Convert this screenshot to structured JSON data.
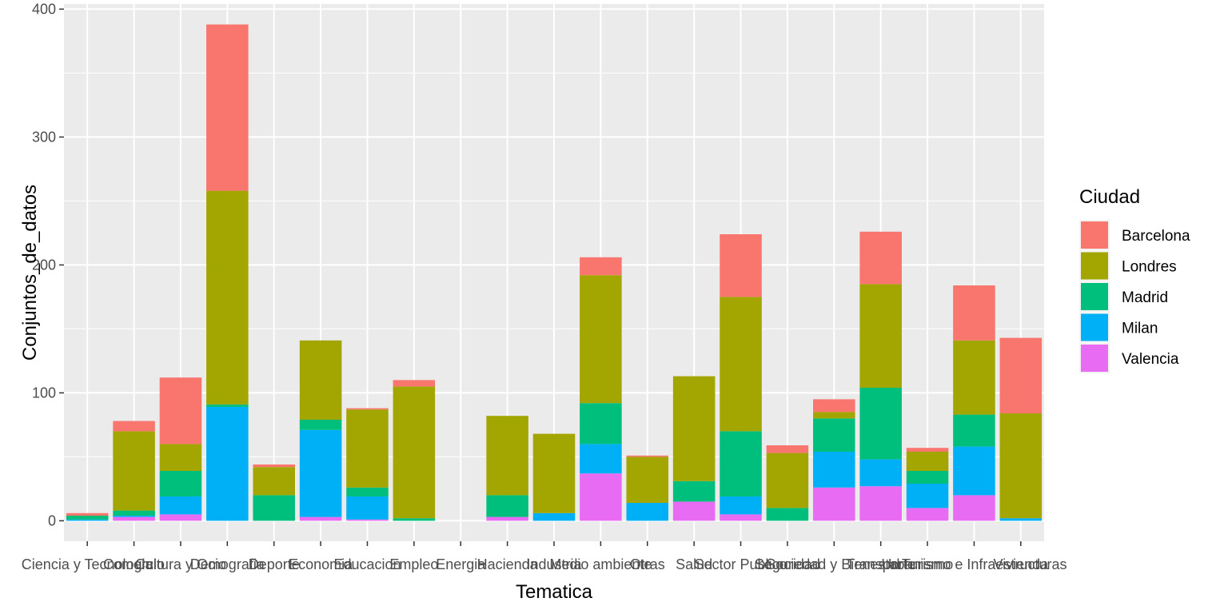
{
  "chart_data": {
    "type": "bar",
    "stacked": true,
    "xlabel": "Tematica",
    "ylabel": "Conjuntos_de_datos",
    "ylim": [
      -16,
      404
    ],
    "yticks": [
      0,
      100,
      200,
      300,
      400
    ],
    "ytick_labels": [
      "0",
      "100",
      "200",
      "300",
      "400"
    ],
    "grid": true,
    "legend_position": "right",
    "legend_title": "Ciudad",
    "categories": [
      "Ciencia y Tecnologia",
      "Comercio",
      "Cultura y Ocio",
      "Demografia",
      "Deporte",
      "Economia",
      "Educacion",
      "Empleo",
      "Energia",
      "Hacienda",
      "Industria",
      "Medio ambiente",
      "Otras",
      "Salud",
      "Sector Publico",
      "Seguridad",
      "Sociedad y Bienestar",
      "Transporte",
      "Turismo",
      "Urbanismo e Infraestructuras",
      "Vivienda"
    ],
    "series": [
      {
        "name": "Valencia",
        "color": "#E76BF3",
        "values": [
          0,
          3,
          5,
          0,
          0,
          3,
          1,
          0,
          0,
          3,
          0,
          37,
          0,
          15,
          5,
          0,
          26,
          27,
          10,
          20,
          0
        ]
      },
      {
        "name": "Milan",
        "color": "#00B0F6",
        "values": [
          1,
          1,
          14,
          89,
          0,
          68,
          18,
          0,
          0,
          0,
          6,
          23,
          14,
          0,
          14,
          0,
          28,
          21,
          19,
          38,
          2
        ]
      },
      {
        "name": "Madrid",
        "color": "#00BF7D",
        "values": [
          3,
          4,
          20,
          2,
          20,
          8,
          7,
          2,
          0,
          17,
          0,
          32,
          0,
          16,
          51,
          10,
          26,
          56,
          10,
          25,
          0
        ]
      },
      {
        "name": "Londres",
        "color": "#A3A500",
        "values": [
          0,
          62,
          21,
          167,
          22,
          62,
          61,
          103,
          0,
          62,
          62,
          100,
          36,
          82,
          105,
          43,
          5,
          81,
          15,
          58,
          82
        ]
      },
      {
        "name": "Barcelona",
        "color": "#F8766D",
        "values": [
          2,
          8,
          52,
          130,
          2,
          0,
          1,
          5,
          0,
          0,
          0,
          14,
          1,
          0,
          49,
          6,
          10,
          41,
          3,
          43,
          59
        ]
      }
    ]
  }
}
